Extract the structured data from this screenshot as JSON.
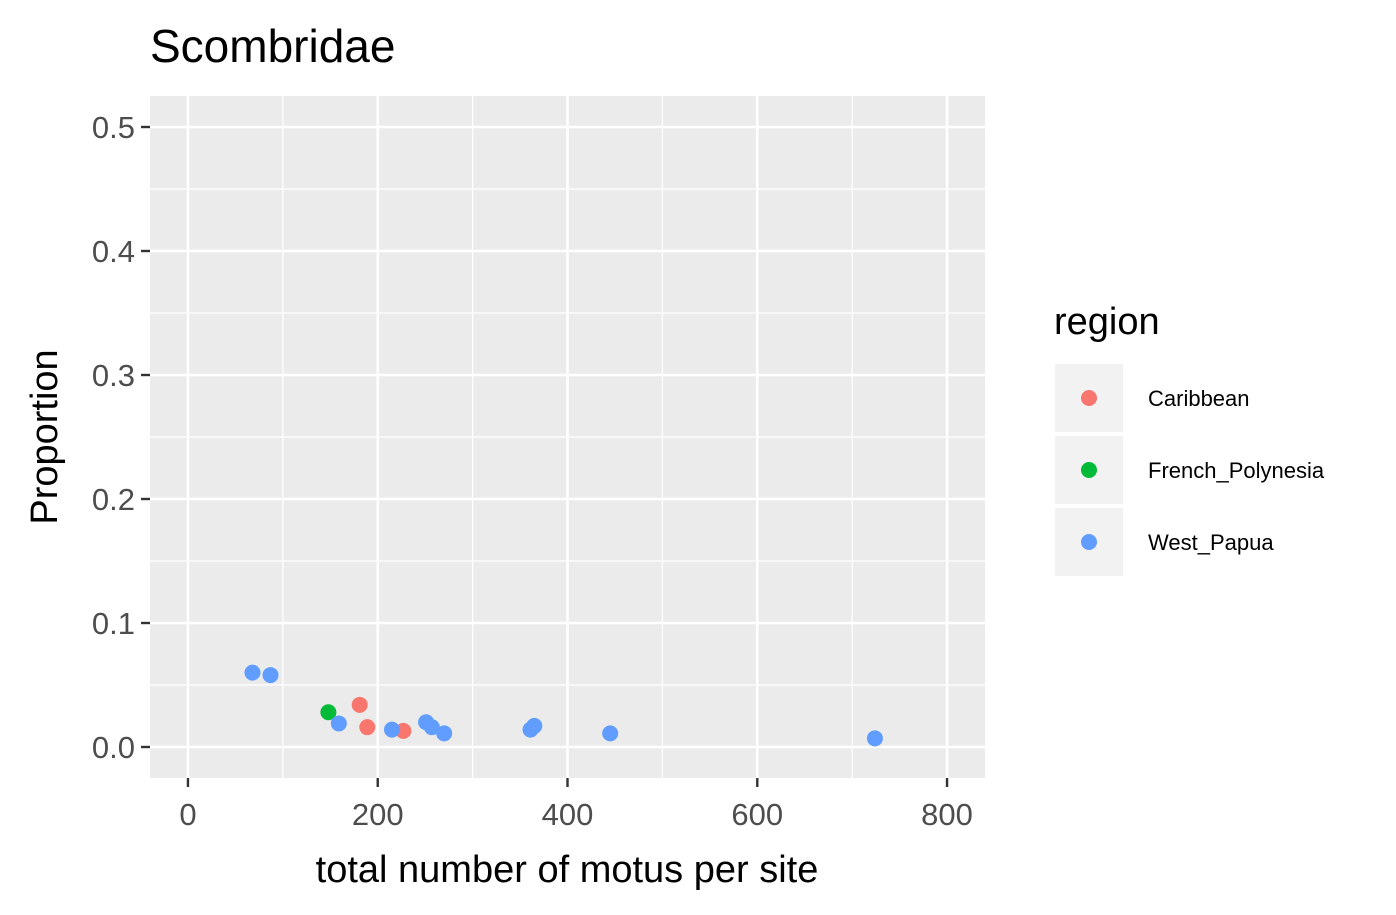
{
  "chart_data": {
    "type": "scatter",
    "title": "Scombridae",
    "xlabel": "total number of motus per site",
    "ylabel": "Proportion",
    "xlim": [
      -40,
      840
    ],
    "ylim": [
      -0.025,
      0.525
    ],
    "x_ticks": [
      0,
      200,
      400,
      600,
      800
    ],
    "x_tick_labels": [
      "0",
      "200",
      "400",
      "600",
      "800"
    ],
    "y_ticks": [
      0.0,
      0.1,
      0.2,
      0.3,
      0.4,
      0.5
    ],
    "y_tick_labels": [
      "0.0",
      "0.1",
      "0.2",
      "0.3",
      "0.4",
      "0.5"
    ],
    "grid": true,
    "legend": {
      "title": "region",
      "position": "right"
    },
    "series": [
      {
        "name": "Caribbean",
        "color": "#F8766D",
        "points": [
          [
            181,
            0.034
          ],
          [
            189,
            0.016
          ],
          [
            227,
            0.013
          ]
        ]
      },
      {
        "name": "French_Polynesia",
        "color": "#00BA38",
        "points": [
          [
            148,
            0.028
          ]
        ]
      },
      {
        "name": "West_Papua",
        "color": "#619CFF",
        "points": [
          [
            68,
            0.06
          ],
          [
            87,
            0.058
          ],
          [
            159,
            0.019
          ],
          [
            215,
            0.014
          ],
          [
            251,
            0.02
          ],
          [
            257,
            0.016
          ],
          [
            270,
            0.011
          ],
          [
            361,
            0.014
          ],
          [
            365,
            0.017
          ],
          [
            445,
            0.011
          ],
          [
            724,
            0.007
          ]
        ]
      }
    ]
  }
}
